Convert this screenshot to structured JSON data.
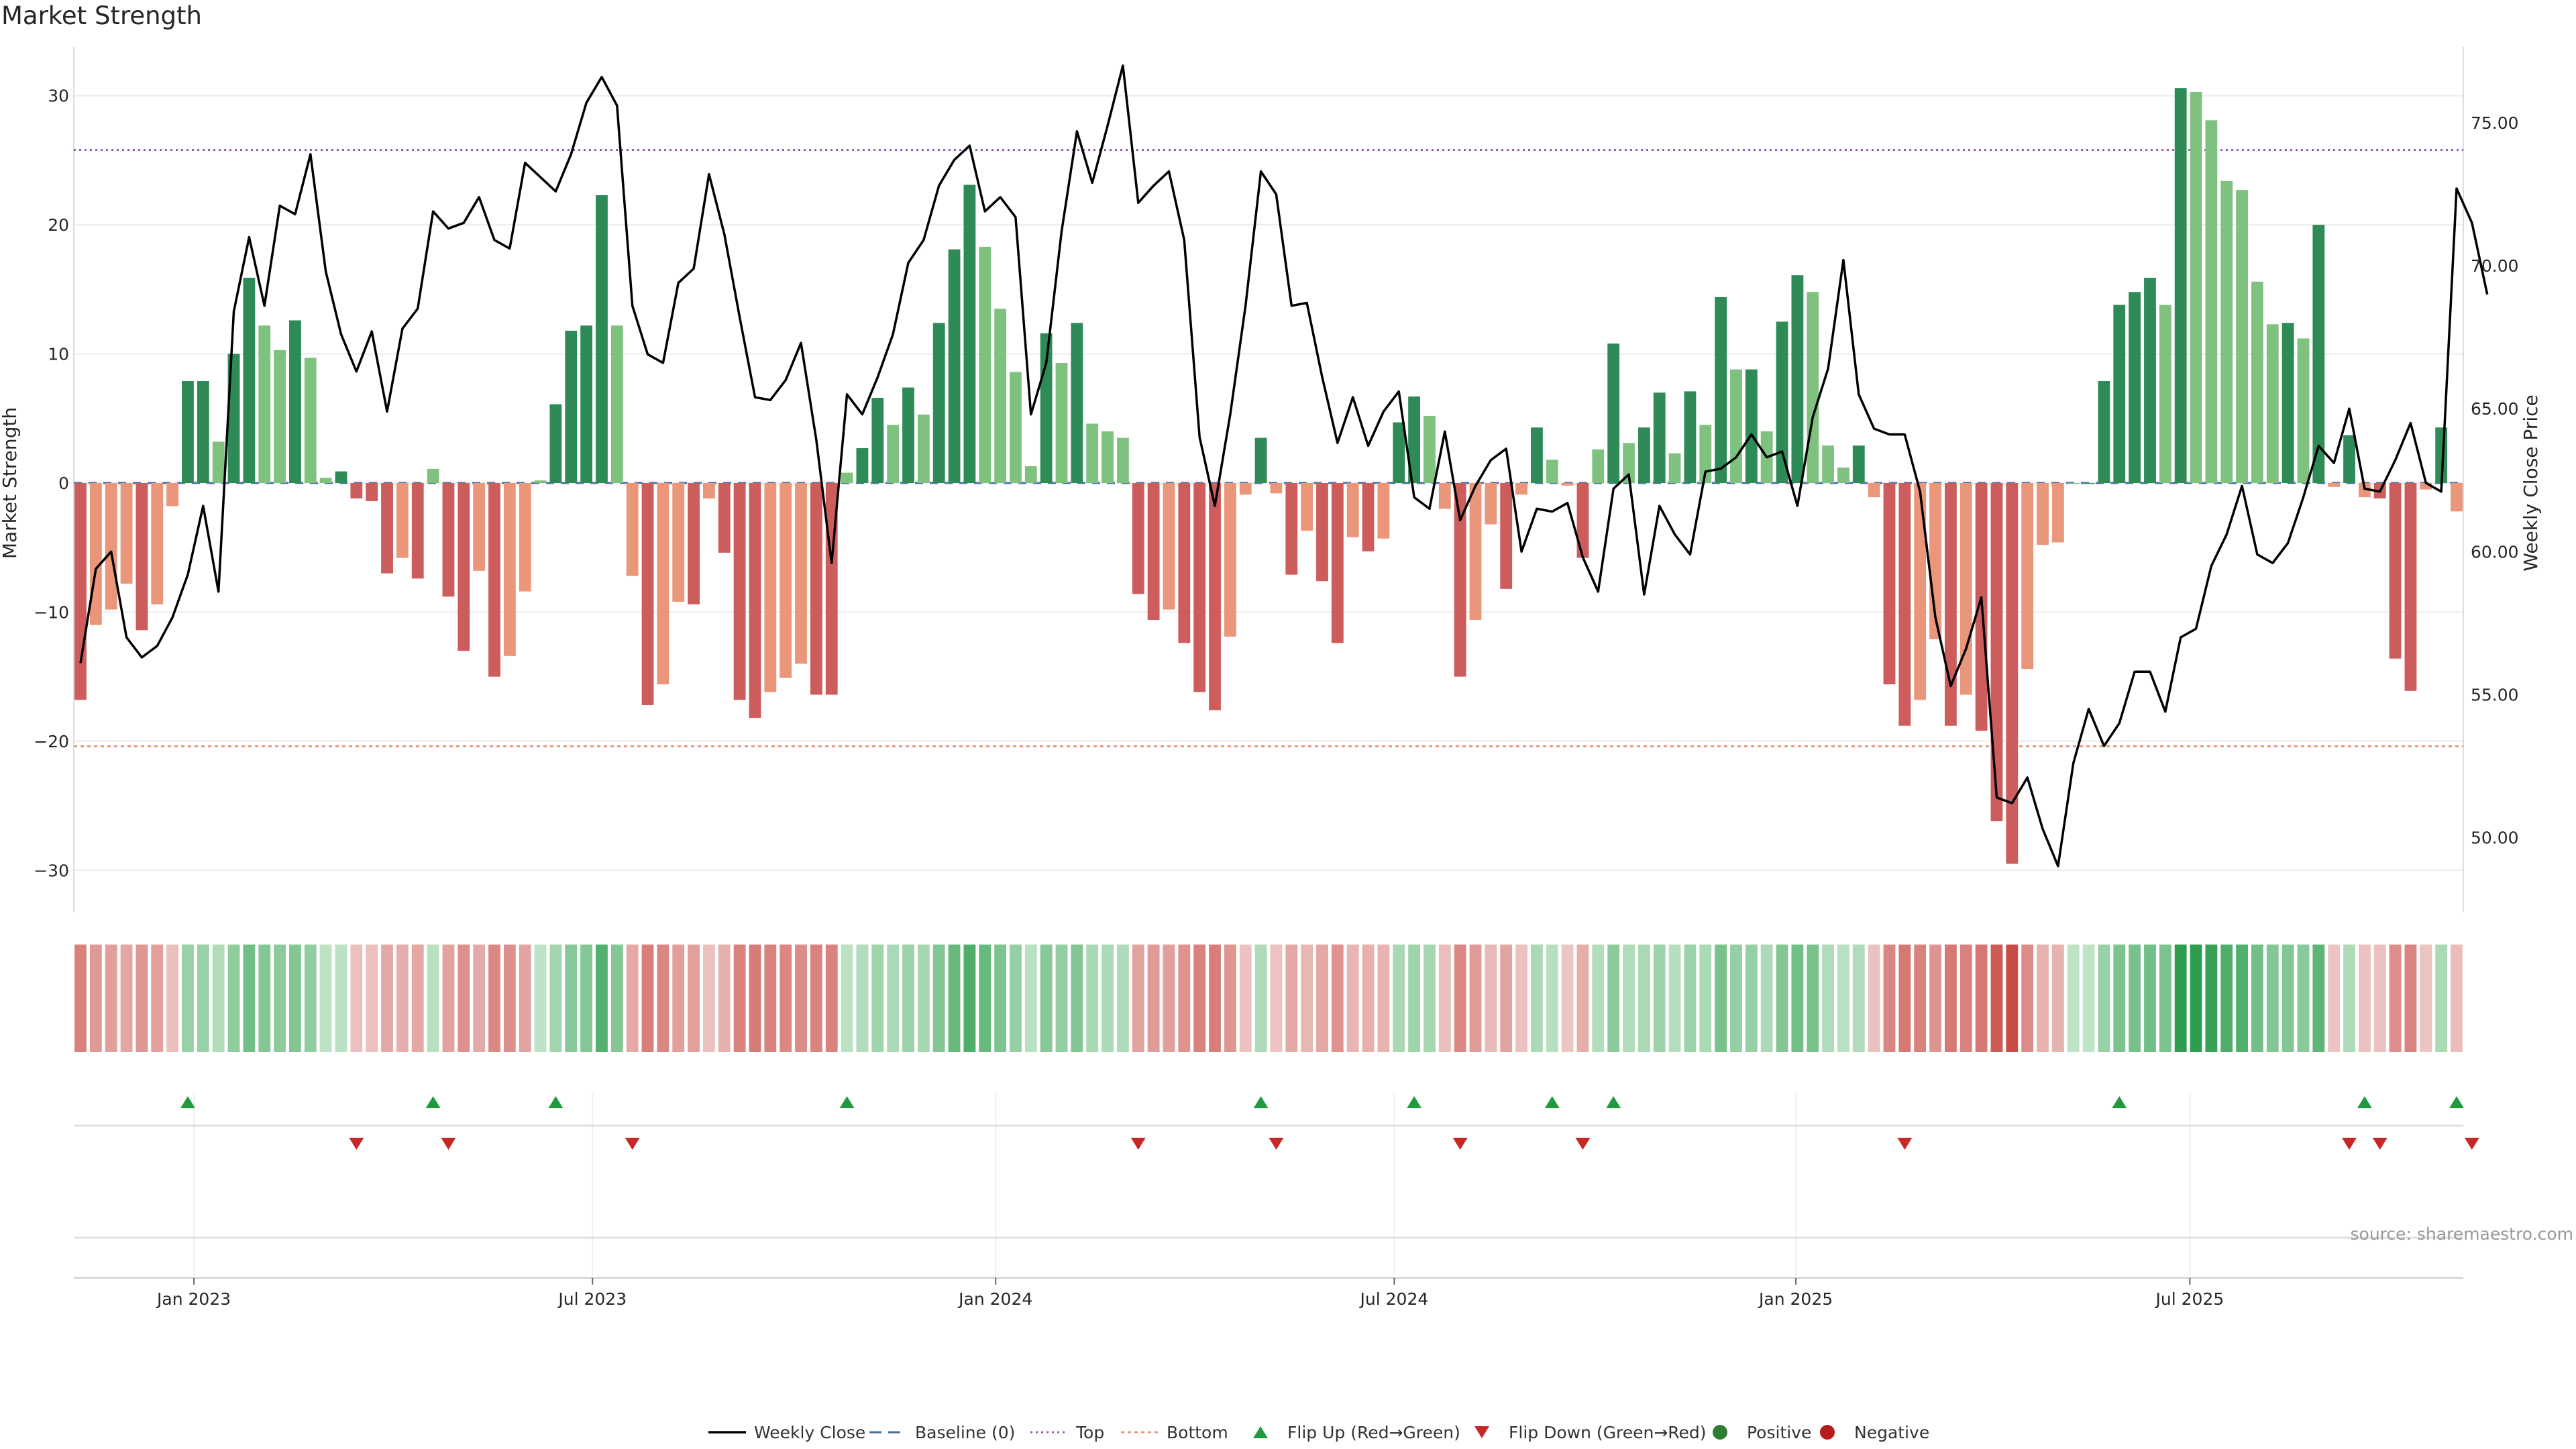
{
  "title": "Market Strength",
  "source": "source: sharemaestro.com",
  "chart_data": {
    "type": "bar",
    "title": "Market Strength",
    "ylabel_left": "Market Strength",
    "ylabel_right": "Weekly Close Price",
    "ylim_left": [
      -33,
      33
    ],
    "ylim_right": [
      47.5,
      77.3
    ],
    "left_ticks": [
      "30",
      "20",
      "10",
      "0",
      "−10",
      "−20",
      "−30"
    ],
    "left_tick_values": [
      30,
      20,
      10,
      0,
      -10,
      -20,
      -30
    ],
    "right_ticks": [
      "75.00",
      "70.00",
      "65.00",
      "60.00",
      "55.00",
      "50.00"
    ],
    "right_tick_values": [
      75,
      70,
      65,
      60,
      55,
      50
    ],
    "x_ticks": [
      "Jan 2023",
      "Jul 2023",
      "Jan 2024",
      "Jul 2024",
      "Jan 2025",
      "Jul 2025"
    ],
    "x_tick_weeks": [
      7.4,
      33.4,
      59.7,
      85.7,
      111.9,
      137.6
    ],
    "top_line": 25.8,
    "bottom_line": -20.4,
    "baseline": 0,
    "strength": [
      -16.8,
      -11,
      -9.8,
      -7.8,
      -11.4,
      -9.4,
      -1.8,
      7.9,
      7.9,
      3.2,
      10,
      15.9,
      12.2,
      10.3,
      12.6,
      9.7,
      0.4,
      0.9,
      -1.2,
      -1.4,
      -7,
      -5.8,
      -7.4,
      1.1,
      -8.8,
      -13,
      -6.8,
      -15,
      -13.4,
      -8.4,
      0.2,
      6.1,
      11.8,
      12.2,
      22.3,
      12.2,
      -7.2,
      -17.2,
      -15.6,
      -9.2,
      -9.4,
      -1.2,
      -5.4,
      -16.8,
      -18.2,
      -16.2,
      -15.1,
      -14,
      -16.4,
      -16.4,
      0.8,
      2.7,
      6.6,
      4.5,
      7.4,
      5.3,
      12.4,
      18.1,
      23.1,
      18.3,
      13.5,
      8.6,
      1.3,
      11.6,
      9.3,
      12.4,
      4.6,
      4,
      3.5,
      -8.6,
      -10.6,
      -9.8,
      -12.4,
      -16.2,
      -17.6,
      -11.9,
      -0.9,
      3.5,
      -0.8,
      -7.1,
      -3.7,
      -7.6,
      -12.4,
      -4.2,
      -5.3,
      -4.3,
      4.7,
      6.7,
      5.2,
      -2,
      -15,
      -10.6,
      -3.2,
      -8.2,
      -0.9,
      4.3,
      1.8,
      -0.2,
      -5.8,
      2.6,
      10.8,
      3.1,
      4.3,
      7,
      2.3,
      7.1,
      4.5,
      14.4,
      8.8,
      8.8,
      4,
      12.5,
      16.1,
      14.8,
      2.9,
      1.2,
      2.9,
      -1.1,
      -15.6,
      -18.8,
      -16.8,
      -12.1,
      -18.8,
      -16.4,
      -19.2,
      -26.2,
      -29.5,
      -14.4,
      -4.8,
      -4.6,
      0,
      0,
      7.9,
      13.8,
      14.8,
      15.9,
      13.8,
      30.6,
      30.3,
      28.1,
      23.4,
      22.7,
      15.6,
      12.3,
      12.4,
      11.2,
      20,
      -0.3,
      3.7,
      -1.1,
      -1.2,
      -13.6,
      -16.1,
      -0.5,
      4.3,
      -2.2
    ],
    "weekly_close": [
      56.1,
      59.4,
      60,
      57,
      56.3,
      56.7,
      57.7,
      59.2,
      61.6,
      58.6,
      68.4,
      71,
      68.6,
      72.1,
      71.8,
      73.9,
      69.8,
      67.6,
      66.3,
      67.7,
      64.9,
      67.8,
      68.5,
      71.9,
      71.3,
      71.5,
      72.4,
      70.9,
      70.6,
      73.6,
      73.1,
      72.6,
      73.9,
      75.7,
      76.6,
      75.6,
      68.6,
      66.9,
      66.6,
      69.4,
      69.9,
      73.2,
      71.1,
      68.2,
      65.4,
      65.3,
      66,
      67.3,
      63.9,
      59.6,
      65.5,
      64.8,
      66.1,
      67.6,
      70.1,
      70.9,
      72.8,
      73.7,
      74.2,
      71.9,
      72.4,
      71.7,
      64.8,
      66.6,
      71.2,
      74.7,
      72.9,
      74.9,
      77,
      72.2,
      72.8,
      73.3,
      70.9,
      64,
      61.6,
      64.8,
      68.6,
      73.3,
      72.5,
      68.6,
      68.7,
      66.1,
      63.8,
      65.4,
      63.7,
      64.9,
      65.6,
      61.9,
      61.5,
      64.2,
      61.1,
      62.3,
      63.2,
      63.6,
      60,
      61.5,
      61.4,
      61.7,
      59.8,
      58.6,
      62.2,
      62.7,
      58.5,
      61.6,
      60.6,
      59.9,
      62.8,
      62.9,
      63.3,
      64.1,
      63.3,
      63.5,
      61.6,
      64.7,
      66.4,
      70.2,
      65.5,
      64.3,
      64.1,
      64.1,
      62.1,
      57.7,
      55.3,
      56.6,
      58.4,
      51.4,
      51.2,
      52.1,
      50.3,
      49,
      52.6,
      54.5,
      53.2,
      54,
      55.8,
      55.8,
      54.4,
      57,
      57.3,
      59.5,
      60.6,
      62.3,
      59.9,
      59.6,
      60.3,
      61.9,
      63.7,
      63.1,
      65,
      62.2,
      62.1,
      63.2,
      64.5,
      62.4,
      62.1,
      72.7,
      71.5,
      69
    ]
  },
  "flip_up_weeks": [
    7,
    23,
    31,
    50,
    77,
    87,
    96,
    100,
    133,
    149,
    155
  ],
  "flip_down_weeks": [
    18,
    24,
    36,
    69,
    78,
    90,
    98,
    119,
    148,
    150,
    156
  ],
  "legend": [
    {
      "label": "Weekly Close",
      "kind": "line"
    },
    {
      "label": "Baseline (0)",
      "kind": "dashed"
    },
    {
      "label": "Top",
      "kind": "dotted"
    },
    {
      "label": "Bottom",
      "kind": "dotted-orange"
    },
    {
      "label": "Flip Up (Red→Green)",
      "kind": "triangle-up"
    },
    {
      "label": "Flip Down (Green→Red)",
      "kind": "triangle-down"
    },
    {
      "label": "Positive",
      "kind": "dot-green"
    },
    {
      "label": "Negative",
      "kind": "dot-red"
    }
  ],
  "colors": {
    "pos_strong": "#2e8b57",
    "pos_light": "#7fc27f",
    "neg_strong": "#cd5c5c",
    "neg_light": "#e9967a",
    "close_line": "#000000",
    "top_line": "#9b59b6",
    "bottom_line": "#e9967a",
    "baseline": "#4a6fa5",
    "flip_up": "#1f9a3e",
    "flip_down": "#c62828",
    "positive_dot": "#2e7d32",
    "negative_dot": "#b71c1c"
  }
}
